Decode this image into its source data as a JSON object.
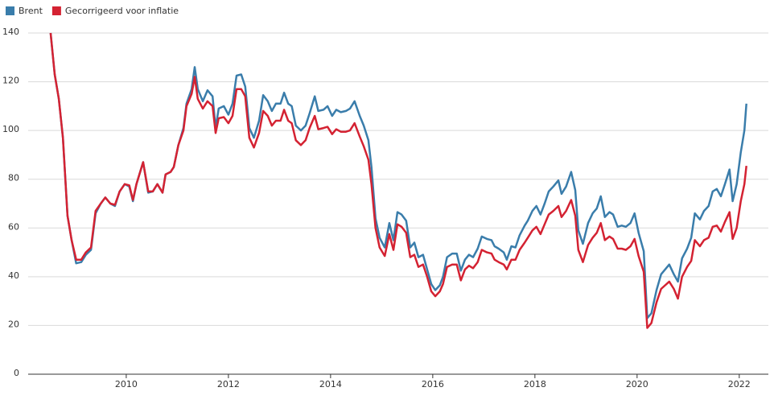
{
  "chart_data": {
    "type": "line",
    "x": [
      2008.52,
      2008.6,
      2008.68,
      2008.76,
      2008.85,
      2008.93,
      2009.02,
      2009.12,
      2009.21,
      2009.31,
      2009.4,
      2009.5,
      2009.59,
      2009.69,
      2009.78,
      2009.87,
      2009.97,
      2010.06,
      2010.13,
      2010.2,
      2010.33,
      2010.43,
      2010.52,
      2010.61,
      2010.71,
      2010.77,
      2010.87,
      2010.93,
      2011.02,
      2011.12,
      2011.18,
      2011.28,
      2011.34,
      2011.4,
      2011.5,
      2011.59,
      2011.69,
      2011.75,
      2011.81,
      2011.91,
      2012.0,
      2012.08,
      2012.16,
      2012.25,
      2012.33,
      2012.41,
      2012.5,
      2012.6,
      2012.68,
      2012.77,
      2012.85,
      2012.93,
      2013.02,
      2013.09,
      2013.17,
      2013.24,
      2013.32,
      2013.42,
      2013.51,
      2013.59,
      2013.69,
      2013.76,
      2013.86,
      2013.94,
      2014.03,
      2014.11,
      2014.2,
      2014.3,
      2014.38,
      2014.47,
      2014.57,
      2014.65,
      2014.74,
      2014.8,
      2014.88,
      2014.96,
      2015.06,
      2015.15,
      2015.23,
      2015.31,
      2015.39,
      2015.48,
      2015.56,
      2015.64,
      2015.72,
      2015.81,
      2015.89,
      2015.97,
      2016.05,
      2016.14,
      2016.2,
      2016.28,
      2016.38,
      2016.47,
      2016.55,
      2016.63,
      2016.71,
      2016.79,
      2016.88,
      2016.96,
      2017.06,
      2017.15,
      2017.21,
      2017.29,
      2017.39,
      2017.45,
      2017.54,
      2017.62,
      2017.7,
      2017.8,
      2017.86,
      2017.95,
      2018.03,
      2018.11,
      2018.19,
      2018.27,
      2018.36,
      2018.46,
      2018.52,
      2018.61,
      2018.71,
      2018.79,
      2018.85,
      2018.94,
      2019.04,
      2019.13,
      2019.21,
      2019.29,
      2019.37,
      2019.46,
      2019.53,
      2019.62,
      2019.7,
      2019.78,
      2019.87,
      2019.95,
      2020.03,
      2020.13,
      2020.2,
      2020.28,
      2020.38,
      2020.47,
      2020.55,
      2020.63,
      2020.72,
      2020.8,
      2020.88,
      2020.98,
      2021.06,
      2021.13,
      2021.23,
      2021.31,
      2021.4,
      2021.48,
      2021.56,
      2021.64,
      2021.72,
      2021.81,
      2021.87,
      2021.95,
      2022.03,
      2022.1,
      2022.14
    ],
    "series": [
      {
        "name": "Brent",
        "color": "#3a7dab",
        "values": [
          140,
          123,
          113,
          97,
          65,
          55,
          45.5,
          46,
          49,
          51,
          66,
          70,
          72.5,
          70,
          69,
          75,
          78,
          77,
          71,
          78,
          87,
          74.5,
          75,
          78,
          74.5,
          82,
          83,
          85,
          94,
          101,
          111,
          117,
          126,
          117,
          112,
          116.5,
          114,
          101,
          109,
          110,
          106.5,
          111,
          122.5,
          123,
          118,
          101,
          97,
          104,
          114.5,
          112,
          108,
          111,
          111,
          115.5,
          111,
          110,
          102,
          100,
          102,
          107,
          114,
          108,
          108.5,
          110,
          106,
          108.5,
          107.5,
          108,
          109,
          112,
          106,
          102,
          96,
          85,
          64,
          56,
          52,
          62,
          55,
          66.5,
          65.5,
          63,
          52,
          54,
          48,
          49,
          43,
          37,
          34.5,
          36.5,
          40,
          48,
          49.5,
          49.5,
          42.5,
          47,
          49,
          48,
          51.5,
          56.5,
          55.5,
          55,
          52.5,
          51.5,
          50,
          47,
          52.5,
          52,
          57,
          61,
          63,
          67,
          69,
          65.5,
          70,
          75,
          77,
          79.5,
          74,
          77,
          83,
          75.5,
          59,
          53.5,
          62,
          66,
          68,
          73,
          64.5,
          66.5,
          65.5,
          60.5,
          61,
          60.5,
          62,
          66,
          58,
          50.5,
          23,
          25,
          34.5,
          41,
          43,
          45,
          41,
          38,
          47.5,
          51.5,
          56,
          66,
          63.5,
          67,
          69,
          75,
          76,
          73,
          78,
          84,
          71,
          78,
          91,
          100,
          111
        ]
      },
      {
        "name": "Gecorrigeerd voor inflatie",
        "color": "#d42232",
        "values": [
          140,
          123,
          113,
          97,
          65,
          55,
          47,
          47,
          50,
          52,
          67,
          70,
          72.5,
          70,
          69.5,
          75,
          78,
          77.5,
          71.5,
          78,
          87,
          75,
          75,
          78,
          74.5,
          82,
          83,
          85,
          94,
          100,
          110,
          115,
          122,
          113,
          109,
          112,
          110,
          99,
          105,
          105.5,
          103,
          106,
          117,
          117,
          114,
          97,
          93,
          99,
          108,
          106,
          102,
          104,
          104,
          108.5,
          104,
          103,
          96,
          94,
          96,
          101,
          106,
          100.5,
          101,
          101.5,
          98.5,
          100.5,
          99.5,
          99.5,
          100,
          103,
          97.5,
          93.5,
          88,
          78,
          60,
          52,
          48.5,
          57.5,
          51,
          61.5,
          60.5,
          58,
          48,
          49,
          44,
          45,
          40,
          34,
          32,
          34,
          37,
          44,
          45,
          45,
          38.5,
          43,
          44.5,
          43.5,
          46,
          51,
          50,
          49.5,
          47,
          46,
          45,
          43,
          47,
          47,
          51,
          54,
          56,
          59,
          60.5,
          57.5,
          61.5,
          65.5,
          67,
          69,
          64.5,
          67,
          71.5,
          65,
          51,
          46,
          53,
          56,
          58,
          62,
          55,
          56.5,
          55.5,
          51.5,
          51.5,
          51,
          52.5,
          55.5,
          48.5,
          42,
          19,
          21,
          29.5,
          35,
          36.5,
          38,
          35,
          31,
          40,
          44,
          46.5,
          55,
          52.5,
          55,
          56,
          60.5,
          61,
          58.5,
          62.5,
          66.5,
          55.5,
          60,
          71,
          78,
          85.5
        ]
      }
    ],
    "xlim": [
      2008.08,
      2022.57
    ],
    "xticks": [
      2010,
      2012,
      2014,
      2016,
      2018,
      2020,
      2022
    ],
    "ylim": [
      0,
      140
    ],
    "yticks": [
      0,
      20,
      40,
      60,
      80,
      100,
      120,
      140
    ],
    "grid": true,
    "legend": "top-left"
  }
}
